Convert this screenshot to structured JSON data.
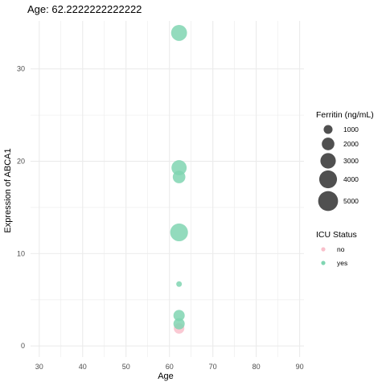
{
  "chart_data": {
    "type": "scatter",
    "title": "Age: 62.2222222222222",
    "xlabel": "Age",
    "ylabel": "Expression of ABCA1",
    "xlim": [
      28,
      91
    ],
    "ylim": [
      -1.2,
      35.2
    ],
    "x_ticks": [
      30,
      40,
      50,
      60,
      70,
      80,
      90
    ],
    "y_ticks": [
      0,
      10,
      20,
      30
    ],
    "grid": true,
    "colors": {
      "no": "#F9C0CB",
      "yes": "#80D5B2",
      "size_key": "#474747",
      "grid": "#ebebeb"
    },
    "points": [
      {
        "x": 62.22,
        "y": 33.9,
        "ferritin": 3200,
        "icu": "yes"
      },
      {
        "x": 62.22,
        "y": 19.3,
        "ferritin": 2900,
        "icu": "yes"
      },
      {
        "x": 62.22,
        "y": 18.3,
        "ferritin": 2000,
        "icu": "yes"
      },
      {
        "x": 62.22,
        "y": 12.3,
        "ferritin": 4000,
        "icu": "yes"
      },
      {
        "x": 62.22,
        "y": 6.7,
        "ferritin": 400,
        "icu": "yes"
      },
      {
        "x": 62.22,
        "y": 3.3,
        "ferritin": 1600,
        "icu": "yes"
      },
      {
        "x": 62.22,
        "y": 1.9,
        "ferritin": 1400,
        "icu": "no"
      },
      {
        "x": 62.22,
        "y": 2.4,
        "ferritin": 1600,
        "icu": "yes"
      }
    ],
    "legend": {
      "placement": "right",
      "size": {
        "title": "Ferritin (ng/mL)",
        "entries": [
          {
            "label": "1000",
            "value": 1000
          },
          {
            "label": "2000",
            "value": 2000
          },
          {
            "label": "3000",
            "value": 3000
          },
          {
            "label": "4000",
            "value": 4000
          },
          {
            "label": "5000",
            "value": 5000
          }
        ]
      },
      "color": {
        "title": "ICU Status",
        "entries": [
          {
            "label": "no",
            "key": "no"
          },
          {
            "label": "yes",
            "key": "yes"
          }
        ]
      }
    }
  }
}
